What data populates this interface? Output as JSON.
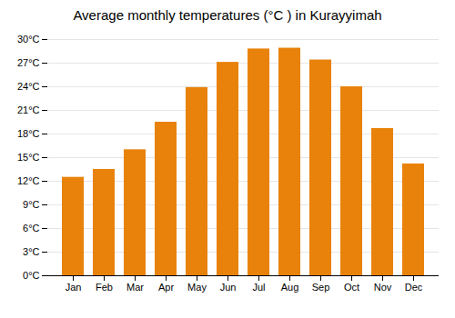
{
  "chart_data": {
    "type": "bar",
    "title": "Average monthly temperatures (°C ) in Kurayyimah",
    "categories": [
      "Jan",
      "Feb",
      "Mar",
      "Apr",
      "May",
      "Jun",
      "Jul",
      "Aug",
      "Sep",
      "Oct",
      "Nov",
      "Dec"
    ],
    "values": [
      12.5,
      13.5,
      16.0,
      19.5,
      23.9,
      27.1,
      28.8,
      28.9,
      27.4,
      24.0,
      18.7,
      14.2
    ],
    "color": "#E8820A",
    "ylim": [
      0,
      30
    ],
    "yticks": [
      {
        "value": 0,
        "label": "0°C"
      },
      {
        "value": 3,
        "label": "3°C"
      },
      {
        "value": 6,
        "label": "6°C"
      },
      {
        "value": 9,
        "label": "9°C"
      },
      {
        "value": 12,
        "label": "12°C"
      },
      {
        "value": 15,
        "label": "15°C"
      },
      {
        "value": 18,
        "label": "18°C"
      },
      {
        "value": 21,
        "label": "21°C"
      },
      {
        "value": 24,
        "label": "24°C"
      },
      {
        "value": 27,
        "label": "27°C"
      },
      {
        "value": 30,
        "label": "30°C"
      }
    ],
    "grid": true
  }
}
